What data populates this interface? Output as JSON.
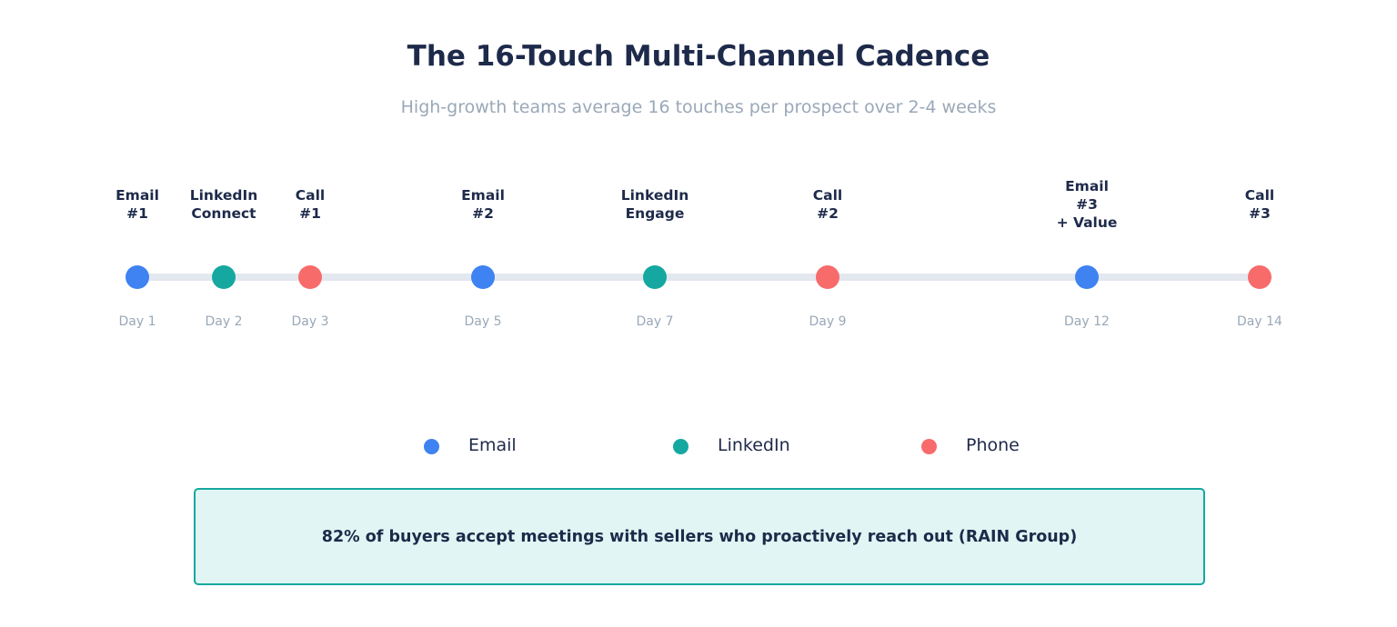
{
  "header": {
    "title": "The 16-Touch Multi-Channel Cadence",
    "subtitle": "High-growth teams average 16 touches per prospect over 2-4 weeks"
  },
  "colors": {
    "email": "#3f82f2",
    "linkedin": "#14a8a0",
    "phone": "#f86b6b",
    "track": "#e3e8ef",
    "label": "#1e2a4a",
    "day": "#9aa8b8"
  },
  "timeline": {
    "touches": [
      {
        "channel": "email",
        "label": [
          "Email",
          "#1"
        ],
        "day": "Day 1"
      },
      {
        "channel": "linkedin",
        "label": [
          "LinkedIn",
          "Connect"
        ],
        "day": "Day 2"
      },
      {
        "channel": "phone",
        "label": [
          "Call",
          "#1"
        ],
        "day": "Day 3"
      },
      {
        "channel": "email",
        "label": [
          "Email",
          "#2"
        ],
        "day": "Day 5"
      },
      {
        "channel": "linkedin",
        "label": [
          "LinkedIn",
          "Engage"
        ],
        "day": "Day 7"
      },
      {
        "channel": "phone",
        "label": [
          "Call",
          "#2"
        ],
        "day": "Day 9"
      },
      {
        "channel": "email",
        "label": [
          "Email",
          "#3",
          "+ Value"
        ],
        "day": "Day 12"
      },
      {
        "channel": "phone",
        "label": [
          "Call",
          "#3"
        ],
        "day": "Day 14"
      }
    ]
  },
  "legend": {
    "items": [
      {
        "channel": "email",
        "label": "Email"
      },
      {
        "channel": "linkedin",
        "label": "LinkedIn"
      },
      {
        "channel": "phone",
        "label": "Phone"
      }
    ]
  },
  "callout": {
    "text": "82% of buyers accept meetings with sellers who proactively reach out (RAIN Group)"
  }
}
